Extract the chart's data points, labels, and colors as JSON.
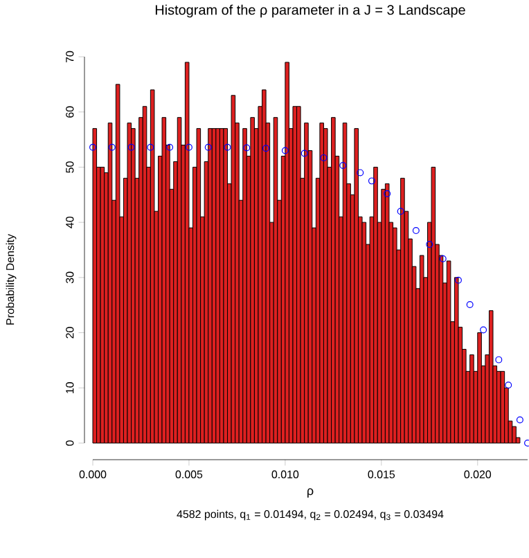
{
  "chart_data": {
    "type": "histogram",
    "title": "Histogram of the ρ parameter in a J = 3 Landscape",
    "xlabel": "ρ",
    "ylabel": "Probability Density",
    "annotations": [
      "4582 points, q$_{1}$ = 0.01494, q$_{2}$ = 0.02494, q$_{3}$ = 0.03494"
    ],
    "color": "#dd2020",
    "bins": [
      0.0,
      0.0002,
      0.0004,
      0.0006,
      0.0008,
      0.001,
      0.0012,
      0.0014,
      0.0016,
      0.0018,
      0.002,
      0.0022,
      0.0024,
      0.0026,
      0.0028,
      0.003,
      0.0032,
      0.0034,
      0.0036,
      0.0038,
      0.004,
      0.0042,
      0.0044,
      0.0046,
      0.0048,
      0.005,
      0.0052,
      0.0054,
      0.0056,
      0.0058,
      0.006,
      0.0062,
      0.0064,
      0.0066,
      0.0068,
      0.007,
      0.0072,
      0.0074,
      0.0076,
      0.0078,
      0.008,
      0.0082,
      0.0084,
      0.0086,
      0.0088,
      0.009,
      0.0092,
      0.0094,
      0.0096,
      0.0098,
      0.01,
      0.0102,
      0.0104,
      0.0106,
      0.0108,
      0.011,
      0.0112,
      0.0114,
      0.0116,
      0.0118,
      0.012,
      0.0122,
      0.0124,
      0.0126,
      0.0128,
      0.013,
      0.0132,
      0.0134,
      0.0136,
      0.0138,
      0.014,
      0.0142,
      0.0144,
      0.0146,
      0.0148,
      0.015,
      0.0152,
      0.0154,
      0.0156,
      0.0158,
      0.016,
      0.0162,
      0.0164,
      0.0166,
      0.0168,
      0.017,
      0.0172,
      0.0174,
      0.0176,
      0.0178,
      0.018,
      0.0182,
      0.0184,
      0.0186,
      0.0188,
      0.019,
      0.0192,
      0.0194,
      0.0196,
      0.0198,
      0.02,
      0.0202,
      0.0204,
      0.0206,
      0.0208,
      0.021,
      0.0212,
      0.0214,
      0.0216,
      0.0218,
      0.022,
      0.0222
    ],
    "values": [
      57,
      50,
      50,
      49,
      58,
      44,
      65,
      41,
      48,
      58,
      57,
      48,
      59,
      61,
      50,
      64,
      42,
      52,
      59,
      54,
      46,
      51,
      59,
      54,
      69,
      39,
      50,
      57,
      41,
      51,
      57,
      57,
      57,
      57,
      57,
      47,
      63,
      58,
      44,
      57,
      52,
      59,
      57,
      61,
      64,
      58,
      40,
      59,
      44,
      52,
      69,
      57,
      61,
      61,
      48,
      58,
      53,
      39,
      48,
      58,
      57,
      50,
      59,
      52,
      41,
      58,
      47,
      45,
      57,
      41,
      40,
      36,
      41,
      50,
      40,
      46,
      47,
      40,
      39,
      35,
      48,
      42,
      37,
      32,
      28,
      34,
      30,
      40,
      50,
      36,
      34,
      29,
      33,
      22,
      30,
      21,
      17,
      13,
      16,
      13,
      20,
      14,
      16,
      24,
      14,
      13,
      13,
      10,
      4,
      3,
      1
    ],
    "series": [
      {
        "type": "scatter",
        "color": "#0000ff",
        "marker": "circle",
        "x": [
          0,
          0.001,
          0.002,
          0.003,
          0.004,
          0.005,
          0.006,
          0.007,
          0.008,
          0.009,
          0.01,
          0.011,
          0.012,
          0.013,
          0.0139,
          0.0145,
          0.0153,
          0.016,
          0.0168,
          0.0175,
          0.0182,
          0.019,
          0.0196,
          0.0203,
          0.0211,
          0.0216,
          0.0222,
          0.0226
        ],
        "values": [
          53.6,
          53.6,
          53.6,
          53.6,
          53.6,
          53.6,
          53.6,
          53.6,
          53.5,
          53.4,
          53,
          52.5,
          51.7,
          50.3,
          49,
          47.5,
          45.2,
          42,
          38.5,
          36,
          33.4,
          29.5,
          25.1,
          20.5,
          15.1,
          10.5,
          4.2,
          0
        ]
      }
    ],
    "xlim": [
      0,
      0.0226
    ],
    "ylim": [
      0,
      70
    ],
    "xticks": [
      {
        "value": 0,
        "label": "0.000"
      },
      {
        "value": 0.005,
        "label": "0.005"
      },
      {
        "value": 0.01,
        "label": "0.010"
      },
      {
        "value": 0.015,
        "label": "0.015"
      },
      {
        "value": 0.02,
        "label": "0.020"
      }
    ],
    "yticks": [
      0,
      10,
      20,
      30,
      40,
      50,
      60,
      70
    ],
    "grid": false
  }
}
